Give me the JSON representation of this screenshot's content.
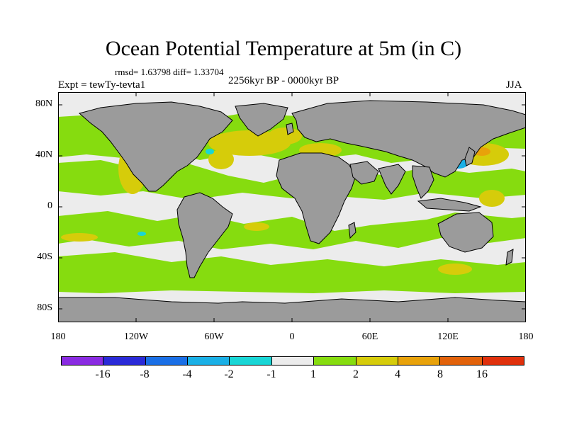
{
  "title": "Ocean Potential Temperature at 5m (in C)",
  "stats": "rmsd= 1.63798  diff= 1.33704",
  "expt": "Expt = tewTy-tevta1",
  "period": "2256kyr BP - 0000kyr BP",
  "season": "JJA",
  "lat_ticks": [
    "80N",
    "40N",
    "0",
    "40S",
    "80S"
  ],
  "lon_ticks": [
    "180",
    "120W",
    "60W",
    "0",
    "60E",
    "120E",
    "180"
  ],
  "colorbar": {
    "colors": [
      "#8a2be2",
      "#2a2ad8",
      "#1a6fe6",
      "#1ab0e6",
      "#19d6d6",
      "#ececec",
      "#86dc0f",
      "#d6cc0a",
      "#e8a20a",
      "#e2620a",
      "#e0300c"
    ],
    "labels": [
      "-16",
      "-8",
      "-4",
      "-2",
      "-1",
      "1",
      "2",
      "4",
      "8",
      "16"
    ]
  },
  "colors": {
    "land": "#9b9b9b",
    "ocean_neutral": "#ececec",
    "coast": "#000000"
  }
}
